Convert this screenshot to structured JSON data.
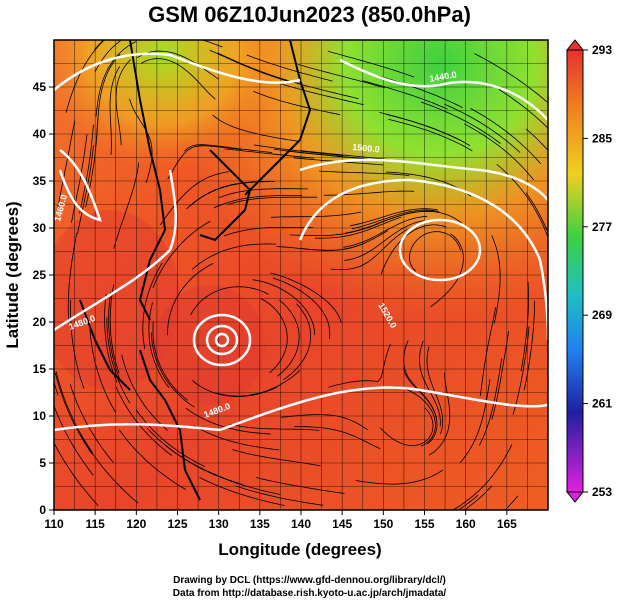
{
  "title": "GSM 06Z10Jun2023 (850.0hPa)",
  "x_axis": {
    "label": "Longitude (degrees)",
    "ticks": [
      "110",
      "115",
      "120",
      "125",
      "130",
      "135",
      "140",
      "145",
      "150",
      "155",
      "160",
      "165"
    ]
  },
  "y_axis": {
    "label": "Latitude  (degrees)",
    "ticks": [
      "0",
      "5",
      "10",
      "15",
      "20",
      "25",
      "30",
      "35",
      "40",
      "45"
    ]
  },
  "colorbar": {
    "labels": [
      "293",
      "285",
      "277",
      "269",
      "261",
      "253"
    ],
    "colors": [
      "#e83030",
      "#f08020",
      "#f0d020",
      "#40d040",
      "#20c0c0",
      "#2060e0",
      "#2020a0",
      "#e020e0"
    ]
  },
  "contours": [
    {
      "label": "1460.0"
    },
    {
      "label": "1480.0"
    },
    {
      "label": "1480.0"
    },
    {
      "label": "1500.0"
    },
    {
      "label": "1520.0"
    },
    {
      "label": "1440.0"
    }
  ],
  "credits": {
    "line1": "Drawing by DCL (https://www.gfd-dennou.org/library/dcl/)",
    "line2": "Data from http://database.rish.kyoto-u.ac.jp/arch/jmadata/"
  }
}
